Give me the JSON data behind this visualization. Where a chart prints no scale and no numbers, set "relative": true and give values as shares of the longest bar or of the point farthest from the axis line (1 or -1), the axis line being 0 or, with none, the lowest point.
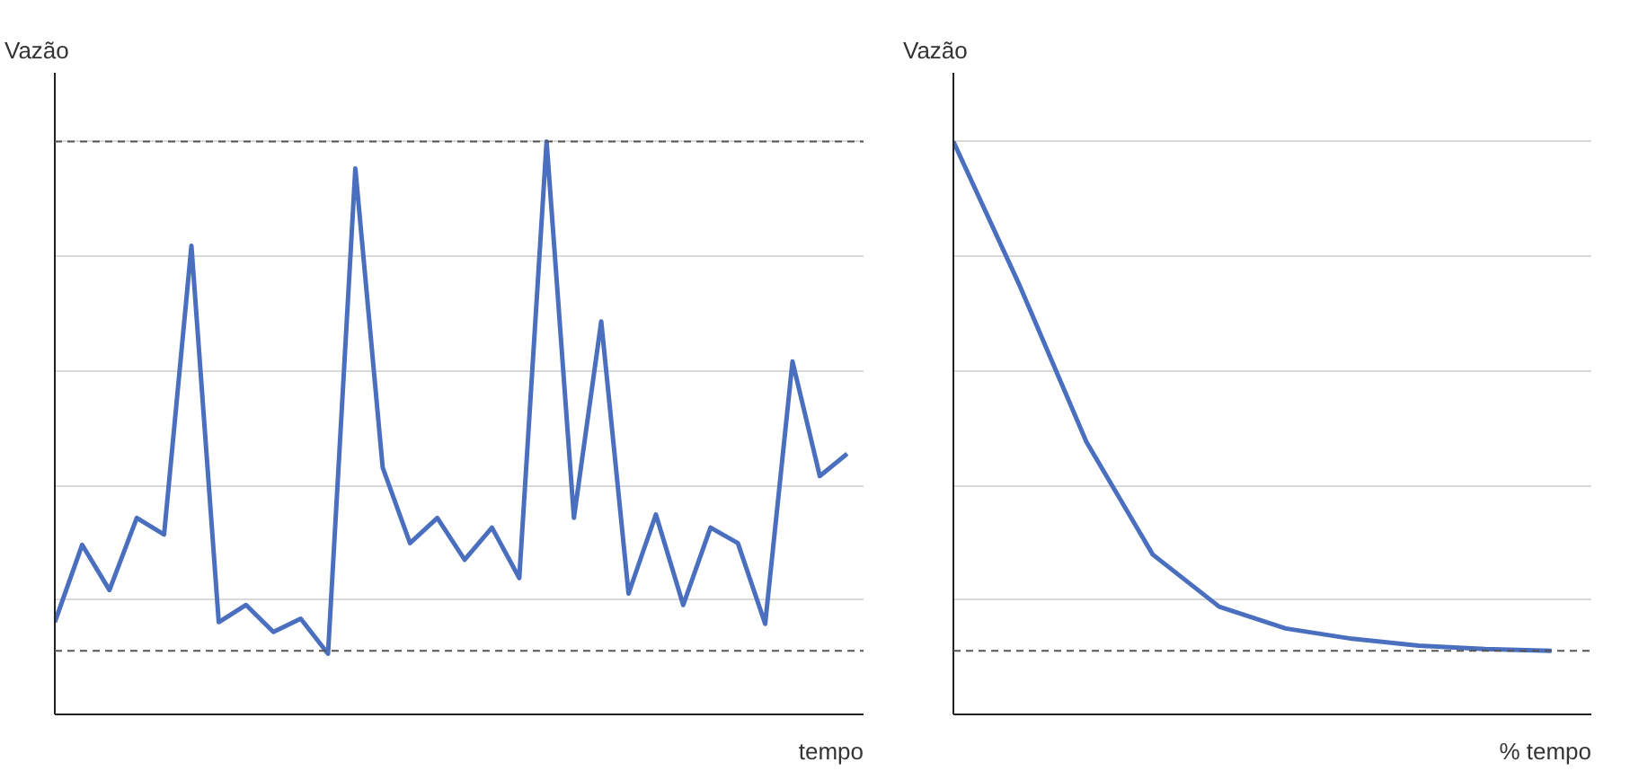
{
  "chart_data": [
    {
      "type": "line",
      "relative": true,
      "ylabel": "Vazão",
      "xlabel": "tempo",
      "grid": "y",
      "tick_labels": false,
      "line_style": "solid",
      "categories": [
        null,
        null,
        null,
        null,
        null,
        null,
        null,
        null,
        null,
        null,
        null,
        null,
        null,
        null,
        null,
        null,
        null,
        null,
        null,
        null,
        null,
        null,
        null,
        null,
        null,
        null,
        null,
        null,
        null,
        null
      ],
      "series": [
        {
          "color": "#4a6fbf",
          "values": [
            0.161,
            0.296,
            0.217,
            0.343,
            0.314,
            0.818,
            0.161,
            0.191,
            0.144,
            0.167,
            0.106,
            0.953,
            0.431,
            0.299,
            0.343,
            0.27,
            0.326,
            0.238,
            1.0,
            0.343,
            0.686,
            0.211,
            0.349,
            0.191,
            0.326,
            0.299,
            0.158,
            0.616,
            0.416,
            0.455
          ]
        }
      ],
      "ref_lines": [
        {
          "axis": "y",
          "value": 1.0,
          "color": "#555555",
          "line_style": "dashed"
        },
        {
          "axis": "y",
          "value": 0.111,
          "color": "#555555",
          "line_style": "dashed"
        }
      ]
    },
    {
      "type": "line",
      "relative": true,
      "ylabel": "Vazão",
      "xlabel": "% tempo",
      "grid": "y",
      "tick_labels": false,
      "line_style": "solid",
      "categories": [
        null,
        null,
        null,
        null,
        null,
        null,
        null,
        null,
        null,
        null
      ],
      "series": [
        {
          "color": "#4a6fbf",
          "values": [
            1.0,
            0.748,
            0.476,
            0.279,
            0.188,
            0.15,
            0.132,
            0.12,
            0.114,
            0.111
          ]
        }
      ],
      "ref_lines": [
        {
          "axis": "y",
          "value": 0.111,
          "color": "#555555",
          "line_style": "dashed"
        }
      ]
    }
  ]
}
